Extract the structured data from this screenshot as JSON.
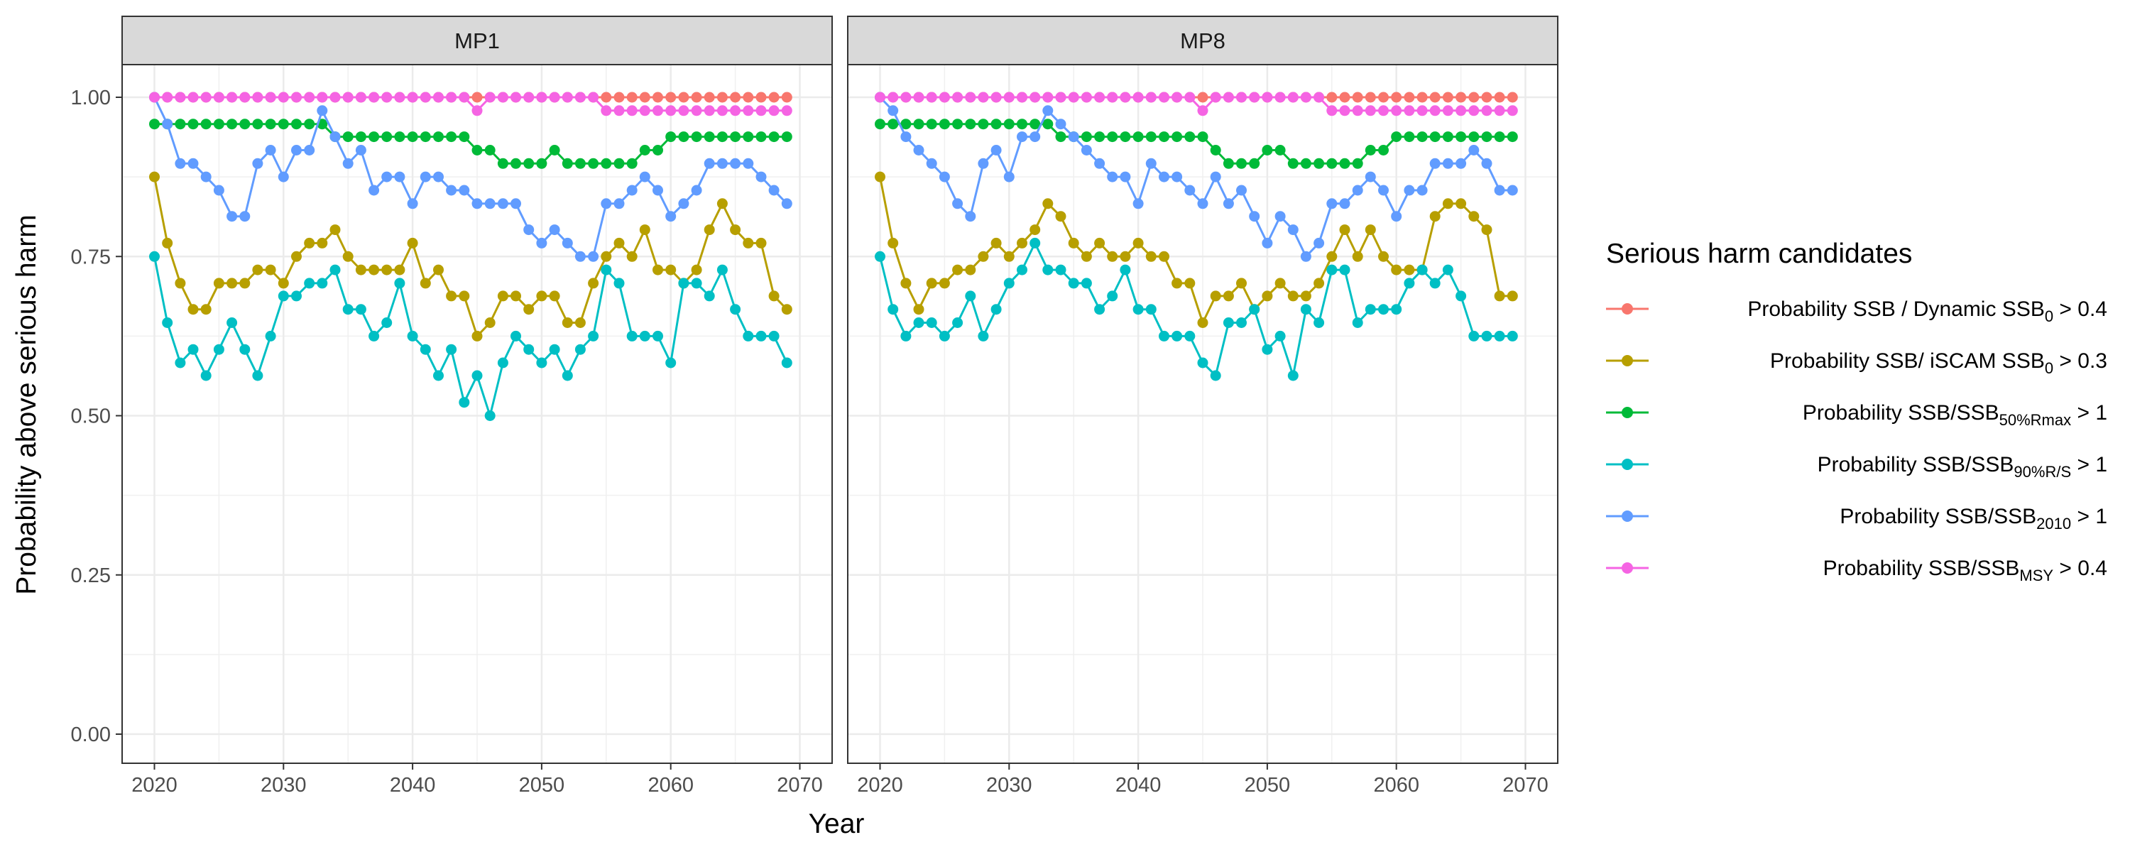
{
  "chart_data": {
    "type": "line",
    "ylabel": "Probability above serious harm",
    "xlabel": "Year",
    "ylim": [
      0,
      1
    ],
    "xlim": [
      2020,
      2070
    ],
    "x_ticks": [
      "2020",
      "2030",
      "2040",
      "2050",
      "2060",
      "2070"
    ],
    "y_ticks": [
      "0.00",
      "0.25",
      "0.50",
      "0.75",
      "1.00"
    ],
    "grid": true,
    "legend": {
      "title": "Serious harm candidates",
      "position": "right",
      "entries": [
        {
          "text": "Probability SSB / Dynamic SSB",
          "sub": "0",
          "suffix": " > 0.4"
        },
        {
          "text": "Probability SSB/ iSCAM SSB",
          "sub": "0",
          "suffix": " > 0.3"
        },
        {
          "text": "Probability SSB/SSB",
          "sub": "50%Rmax",
          "suffix": " > 1"
        },
        {
          "text": "Probability SSB/SSB",
          "sub": "90%R/S",
          "suffix": " > 1"
        },
        {
          "text": "Probability SSB/SSB",
          "sub": "2010",
          "suffix": " > 1"
        },
        {
          "text": "Probability SSB/SSB",
          "sub": "MSY",
          "suffix": " > 0.4"
        }
      ]
    },
    "x_start": 2020,
    "panels": [
      {
        "title": "MP1",
        "series": [
          {
            "color": "#F8766D",
            "values": [
              1,
              1,
              1,
              1,
              1,
              1,
              1,
              1,
              1,
              1,
              1,
              1,
              1,
              1,
              1,
              1,
              1,
              1,
              1,
              1,
              1,
              1,
              1,
              1,
              1,
              1,
              1,
              1,
              1,
              1,
              1,
              1,
              1,
              1,
              1,
              1,
              1,
              1,
              1,
              1,
              1,
              1,
              1,
              1,
              1,
              1,
              1,
              1,
              1,
              1
            ]
          },
          {
            "color": "#B79F00",
            "values": [
              0.875,
              0.771,
              0.708,
              0.667,
              0.667,
              0.708,
              0.708,
              0.708,
              0.729,
              0.729,
              0.708,
              0.75,
              0.771,
              0.771,
              0.792,
              0.75,
              0.729,
              0.729,
              0.729,
              0.729,
              0.771,
              0.708,
              0.729,
              0.688,
              0.688,
              0.625,
              0.646,
              0.688,
              0.688,
              0.667,
              0.688,
              0.688,
              0.646,
              0.646,
              0.708,
              0.75,
              0.771,
              0.75,
              0.792,
              0.729,
              0.729,
              0.708,
              0.729,
              0.792,
              0.833,
              0.792,
              0.771,
              0.771,
              0.688,
              0.667
            ]
          },
          {
            "color": "#00BA38",
            "values": [
              0.958,
              0.958,
              0.958,
              0.958,
              0.958,
              0.958,
              0.958,
              0.958,
              0.958,
              0.958,
              0.958,
              0.958,
              0.958,
              0.958,
              0.938,
              0.938,
              0.938,
              0.938,
              0.938,
              0.938,
              0.938,
              0.938,
              0.938,
              0.938,
              0.938,
              0.917,
              0.917,
              0.896,
              0.896,
              0.896,
              0.896,
              0.917,
              0.896,
              0.896,
              0.896,
              0.896,
              0.896,
              0.896,
              0.917,
              0.917,
              0.938,
              0.938,
              0.938,
              0.938,
              0.938,
              0.938,
              0.938,
              0.938,
              0.938,
              0.938
            ]
          },
          {
            "color": "#00BFC4",
            "values": [
              0.75,
              0.646,
              0.583,
              0.604,
              0.563,
              0.604,
              0.646,
              0.604,
              0.563,
              0.625,
              0.688,
              0.688,
              0.708,
              0.708,
              0.729,
              0.667,
              0.667,
              0.625,
              0.646,
              0.708,
              0.625,
              0.604,
              0.563,
              0.604,
              0.521,
              0.563,
              0.5,
              0.583,
              0.625,
              0.604,
              0.583,
              0.604,
              0.563,
              0.604,
              0.625,
              0.729,
              0.708,
              0.625,
              0.625,
              0.625,
              0.583,
              0.708,
              0.708,
              0.688,
              0.729,
              0.667,
              0.625,
              0.625,
              0.625,
              0.583
            ]
          },
          {
            "color": "#619CFF",
            "values": [
              1,
              0.958,
              0.896,
              0.896,
              0.875,
              0.854,
              0.813,
              0.813,
              0.896,
              0.917,
              0.875,
              0.917,
              0.917,
              0.979,
              0.938,
              0.896,
              0.917,
              0.854,
              0.875,
              0.875,
              0.833,
              0.875,
              0.875,
              0.854,
              0.854,
              0.833,
              0.833,
              0.833,
              0.833,
              0.792,
              0.771,
              0.792,
              0.771,
              0.75,
              0.75,
              0.833,
              0.833,
              0.854,
              0.875,
              0.854,
              0.813,
              0.833,
              0.854,
              0.896,
              0.896,
              0.896,
              0.896,
              0.875,
              0.854,
              0.833
            ]
          },
          {
            "color": "#F564E3",
            "values": [
              1,
              1,
              1,
              1,
              1,
              1,
              1,
              1,
              1,
              1,
              1,
              1,
              1,
              1,
              1,
              1,
              1,
              1,
              1,
              1,
              1,
              1,
              1,
              1,
              1,
              0.979,
              1,
              1,
              1,
              1,
              1,
              1,
              1,
              1,
              1,
              0.979,
              0.979,
              0.979,
              0.979,
              0.979,
              0.979,
              0.979,
              0.979,
              0.979,
              0.979,
              0.979,
              0.979,
              0.979,
              0.979,
              0.979
            ]
          }
        ]
      },
      {
        "title": "MP8",
        "series": [
          {
            "color": "#F8766D",
            "values": [
              1,
              1,
              1,
              1,
              1,
              1,
              1,
              1,
              1,
              1,
              1,
              1,
              1,
              1,
              1,
              1,
              1,
              1,
              1,
              1,
              1,
              1,
              1,
              1,
              1,
              1,
              1,
              1,
              1,
              1,
              1,
              1,
              1,
              1,
              1,
              1,
              1,
              1,
              1,
              1,
              1,
              1,
              1,
              1,
              1,
              1,
              1,
              1,
              1,
              1
            ]
          },
          {
            "color": "#B79F00",
            "values": [
              0.875,
              0.771,
              0.708,
              0.667,
              0.708,
              0.708,
              0.729,
              0.729,
              0.75,
              0.771,
              0.75,
              0.771,
              0.792,
              0.833,
              0.813,
              0.771,
              0.75,
              0.771,
              0.75,
              0.75,
              0.771,
              0.75,
              0.75,
              0.708,
              0.708,
              0.646,
              0.688,
              0.688,
              0.708,
              0.667,
              0.688,
              0.708,
              0.688,
              0.688,
              0.708,
              0.75,
              0.792,
              0.75,
              0.792,
              0.75,
              0.729,
              0.729,
              0.729,
              0.813,
              0.833,
              0.833,
              0.813,
              0.792,
              0.688,
              0.688
            ]
          },
          {
            "color": "#00BA38",
            "values": [
              0.958,
              0.958,
              0.958,
              0.958,
              0.958,
              0.958,
              0.958,
              0.958,
              0.958,
              0.958,
              0.958,
              0.958,
              0.958,
              0.958,
              0.938,
              0.938,
              0.938,
              0.938,
              0.938,
              0.938,
              0.938,
              0.938,
              0.938,
              0.938,
              0.938,
              0.938,
              0.917,
              0.896,
              0.896,
              0.896,
              0.917,
              0.917,
              0.896,
              0.896,
              0.896,
              0.896,
              0.896,
              0.896,
              0.917,
              0.917,
              0.938,
              0.938,
              0.938,
              0.938,
              0.938,
              0.938,
              0.938,
              0.938,
              0.938,
              0.938
            ]
          },
          {
            "color": "#00BFC4",
            "values": [
              0.75,
              0.667,
              0.625,
              0.646,
              0.646,
              0.625,
              0.646,
              0.688,
              0.625,
              0.667,
              0.708,
              0.729,
              0.771,
              0.729,
              0.729,
              0.708,
              0.708,
              0.667,
              0.688,
              0.729,
              0.667,
              0.667,
              0.625,
              0.625,
              0.625,
              0.583,
              0.563,
              0.646,
              0.646,
              0.667,
              0.604,
              0.625,
              0.563,
              0.667,
              0.646,
              0.729,
              0.729,
              0.646,
              0.667,
              0.667,
              0.667,
              0.708,
              0.729,
              0.708,
              0.729,
              0.688,
              0.625,
              0.625,
              0.625,
              0.625
            ]
          },
          {
            "color": "#619CFF",
            "values": [
              1,
              0.979,
              0.938,
              0.917,
              0.896,
              0.875,
              0.833,
              0.813,
              0.896,
              0.917,
              0.875,
              0.938,
              0.938,
              0.979,
              0.958,
              0.938,
              0.917,
              0.896,
              0.875,
              0.875,
              0.833,
              0.896,
              0.875,
              0.875,
              0.854,
              0.833,
              0.875,
              0.833,
              0.854,
              0.813,
              0.771,
              0.813,
              0.792,
              0.75,
              0.771,
              0.833,
              0.833,
              0.854,
              0.875,
              0.854,
              0.813,
              0.854,
              0.854,
              0.896,
              0.896,
              0.896,
              0.917,
              0.896,
              0.854,
              0.854
            ]
          },
          {
            "color": "#F564E3",
            "values": [
              1,
              1,
              1,
              1,
              1,
              1,
              1,
              1,
              1,
              1,
              1,
              1,
              1,
              1,
              1,
              1,
              1,
              1,
              1,
              1,
              1,
              1,
              1,
              1,
              1,
              0.979,
              1,
              1,
              1,
              1,
              1,
              1,
              1,
              1,
              1,
              0.979,
              0.979,
              0.979,
              0.979,
              0.979,
              0.979,
              0.979,
              0.979,
              0.979,
              0.979,
              0.979,
              0.979,
              0.979,
              0.979,
              0.979
            ]
          }
        ]
      }
    ]
  }
}
